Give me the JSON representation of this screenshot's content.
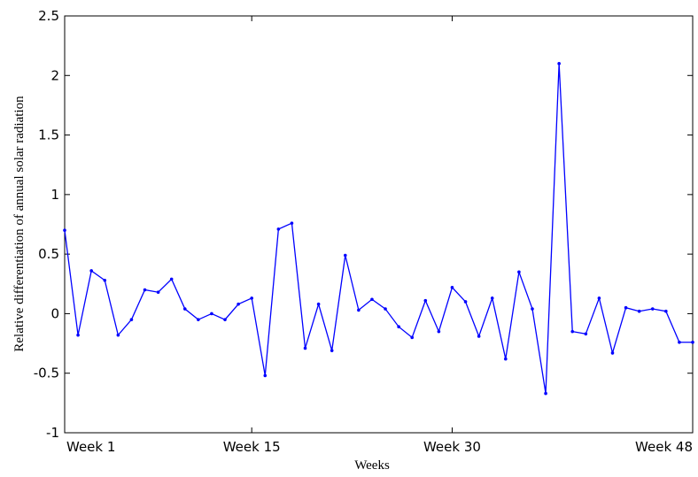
{
  "chart_data": {
    "type": "line",
    "x_label": "Weeks",
    "y_label": "Relative differentiation of annual solar radiation",
    "x": [
      1,
      2,
      3,
      4,
      5,
      6,
      7,
      8,
      9,
      10,
      11,
      12,
      13,
      14,
      15,
      16,
      17,
      18,
      19,
      20,
      21,
      22,
      23,
      24,
      25,
      26,
      27,
      28,
      29,
      30,
      31,
      32,
      33,
      34,
      35,
      36,
      37,
      38,
      39,
      40,
      41,
      42,
      43,
      44,
      45,
      46,
      47,
      48
    ],
    "series": [
      {
        "color": "#0000ff",
        "values": [
          0.7,
          -0.18,
          0.36,
          0.28,
          -0.18,
          -0.05,
          0.2,
          0.18,
          0.29,
          0.04,
          -0.05,
          0.0,
          -0.05,
          0.08,
          0.13,
          -0.52,
          0.71,
          0.76,
          -0.29,
          0.08,
          -0.31,
          0.49,
          0.03,
          0.12,
          0.04,
          -0.11,
          -0.2,
          0.11,
          -0.15,
          0.22,
          0.1,
          -0.19,
          0.13,
          -0.38,
          0.35,
          0.04,
          -0.67,
          2.1,
          -0.15,
          -0.17,
          0.13,
          -0.33,
          0.05,
          0.02,
          0.04,
          0.02,
          -0.24,
          -0.24
        ]
      }
    ],
    "xlim": [
      1,
      48
    ],
    "xticks": [
      {
        "value": 1,
        "label": "Week 1"
      },
      {
        "value": 15,
        "label": "Week 15"
      },
      {
        "value": 30,
        "label": "Week 30"
      },
      {
        "value": 48,
        "label": "Week 48"
      }
    ],
    "ylim": [
      -1,
      2.5
    ],
    "yticks": [
      -1,
      -0.5,
      0,
      0.5,
      1,
      1.5,
      2,
      2.5
    ],
    "grid": false
  }
}
